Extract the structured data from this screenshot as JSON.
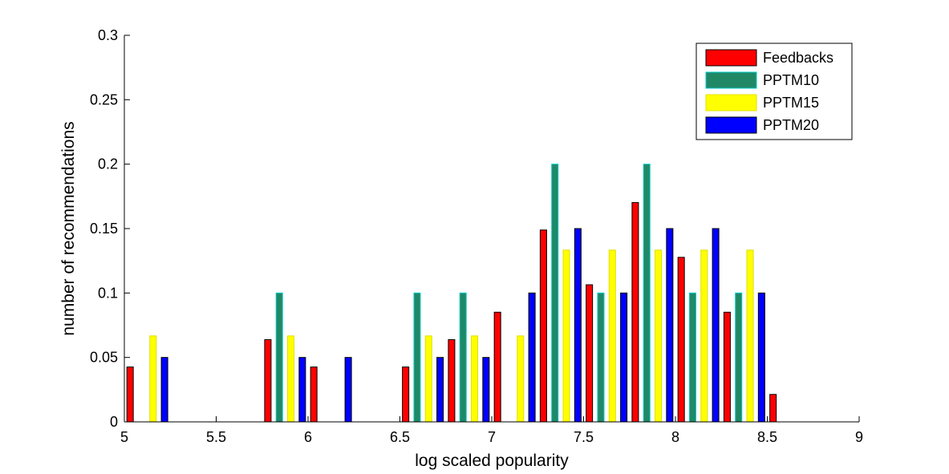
{
  "chart_data": {
    "type": "bar",
    "title": "",
    "xlabel": "log scaled popularity",
    "ylabel": "number of recommendations",
    "xlim": [
      5,
      9
    ],
    "ylim": [
      0,
      0.3
    ],
    "xticks": [
      "5",
      "5.5",
      "6",
      "6.5",
      "7",
      "7.5",
      "8",
      "8.5",
      "9"
    ],
    "yticks": [
      "0",
      "0.05",
      "0.1",
      "0.15",
      "0.2",
      "0.25",
      "0.3"
    ],
    "grid": false,
    "legend_position": "top-right",
    "categories": [
      5.125,
      5.375,
      5.625,
      5.875,
      6.125,
      6.375,
      6.625,
      6.875,
      7.125,
      7.375,
      7.625,
      7.875,
      8.125,
      8.375,
      8.625,
      8.875
    ],
    "series": [
      {
        "name": "Feedbacks",
        "color": "#ff0000",
        "edge": "#000000",
        "values": [
          0.0426,
          0,
          0,
          0.0638,
          0.0426,
          0,
          0.0426,
          0.0638,
          0.0851,
          0.1489,
          0.1064,
          0.1702,
          0.1277,
          0.0851,
          0.0213,
          0
        ]
      },
      {
        "name": "PPTM10",
        "color": "#218866",
        "edge": "#00cccc",
        "values": [
          0,
          0,
          0,
          0.1,
          0,
          0,
          0.1,
          0.1,
          0,
          0.2,
          0.1,
          0.2,
          0.1,
          0.1,
          0,
          0
        ]
      },
      {
        "name": "PPTM15",
        "color": "#ffff00",
        "edge": "#e0e000",
        "values": [
          0.0667,
          0,
          0,
          0.0667,
          0,
          0,
          0.0667,
          0.0667,
          0.0667,
          0.1333,
          0.1333,
          0.1333,
          0.1333,
          0.1333,
          0,
          0
        ]
      },
      {
        "name": "PPTM20",
        "color": "#0000ff",
        "edge": "#000000",
        "values": [
          0.05,
          0,
          0,
          0.05,
          0.05,
          0,
          0.05,
          0.05,
          0.1,
          0.15,
          0.1,
          0.15,
          0.15,
          0.1,
          0,
          0
        ]
      }
    ]
  }
}
